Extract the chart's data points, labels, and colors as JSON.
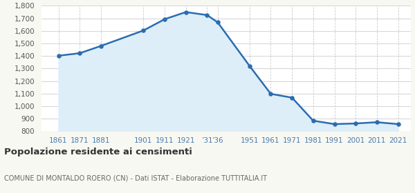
{
  "years": [
    1861,
    1871,
    1881,
    1901,
    1911,
    1921,
    1931,
    1936,
    1951,
    1961,
    1971,
    1981,
    1991,
    2001,
    2011,
    2021
  ],
  "population": [
    1402,
    1422,
    1480,
    1603,
    1693,
    1750,
    1726,
    1668,
    1321,
    1098,
    1068,
    884,
    857,
    862,
    872,
    857
  ],
  "line_color": "#2b6cb0",
  "fill_color": "#ddeef8",
  "marker_color": "#2b6cb0",
  "background_color": "#f8f8f2",
  "plot_bg_color": "#ffffff",
  "grid_color_h": "#cccccc",
  "grid_color_v": "#cccccc",
  "title": "Popolazione residente ai censimenti",
  "subtitle": "COMUNE DI MONTALDO ROERO (CN) - Dati ISTAT - Elaborazione TUTTITALIA.IT",
  "ylim": [
    800,
    1800
  ],
  "yticks": [
    800,
    900,
    1000,
    1100,
    1200,
    1300,
    1400,
    1500,
    1600,
    1700,
    1800
  ],
  "xtick_positions": [
    1861,
    1871,
    1881,
    1901,
    1911,
    1921,
    1931,
    1936,
    1951,
    1961,
    1971,
    1981,
    1991,
    2001,
    2011,
    2021
  ],
  "xtick_labels": [
    "1861",
    "1871",
    "1881",
    "1901",
    "1911",
    "1921",
    "’31",
    "’36",
    "1951",
    "1961",
    "1971",
    "1981",
    "1991",
    "2001",
    "2011",
    "2021"
  ],
  "xlim": [
    1853,
    2027
  ]
}
